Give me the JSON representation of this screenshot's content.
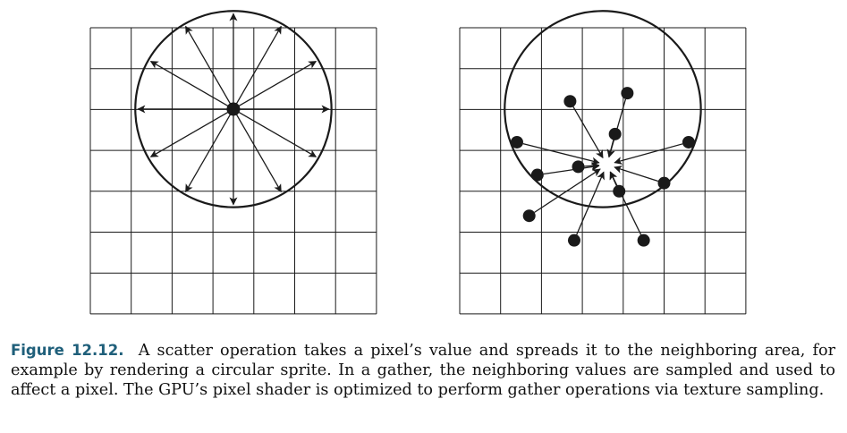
{
  "figure": {
    "left_panel": {
      "description_role": "scatter",
      "grid": {
        "cols": 7,
        "rows": 7
      },
      "center": [
        3.5,
        3.5
      ],
      "radius": 2.4,
      "arrow_directions_deg": [
        0,
        30,
        60,
        90,
        120,
        150,
        180,
        210,
        240,
        270,
        300,
        330
      ]
    },
    "right_panel": {
      "description_role": "gather",
      "grid": {
        "cols": 7,
        "rows": 7
      },
      "center": [
        3.5,
        3.5
      ],
      "radius": 2.4,
      "target_grid": [
        3.6,
        3.35
      ],
      "sample_points_grid": [
        [
          2.7,
          1.8
        ],
        [
          4.1,
          1.6
        ],
        [
          3.8,
          2.6
        ],
        [
          1.4,
          2.8
        ],
        [
          5.6,
          2.8
        ],
        [
          1.9,
          3.6
        ],
        [
          2.9,
          3.4
        ],
        [
          5.0,
          3.8
        ],
        [
          3.9,
          4.0
        ],
        [
          1.7,
          4.6
        ],
        [
          2.8,
          5.2
        ],
        [
          4.5,
          5.2
        ]
      ]
    },
    "colors": {
      "line": "#1a1a1a",
      "caption_label": "#1f5f7a"
    }
  },
  "caption": {
    "label": "Figure 12.12.",
    "text": "A scatter operation takes a pixel’s value and spreads it to the neighboring area, for example by rendering a circular sprite. In a gather, the neighboring values are sampled and used to affect a pixel. The GPU’s pixel shader is optimized to perform gather operations via texture sampling."
  }
}
